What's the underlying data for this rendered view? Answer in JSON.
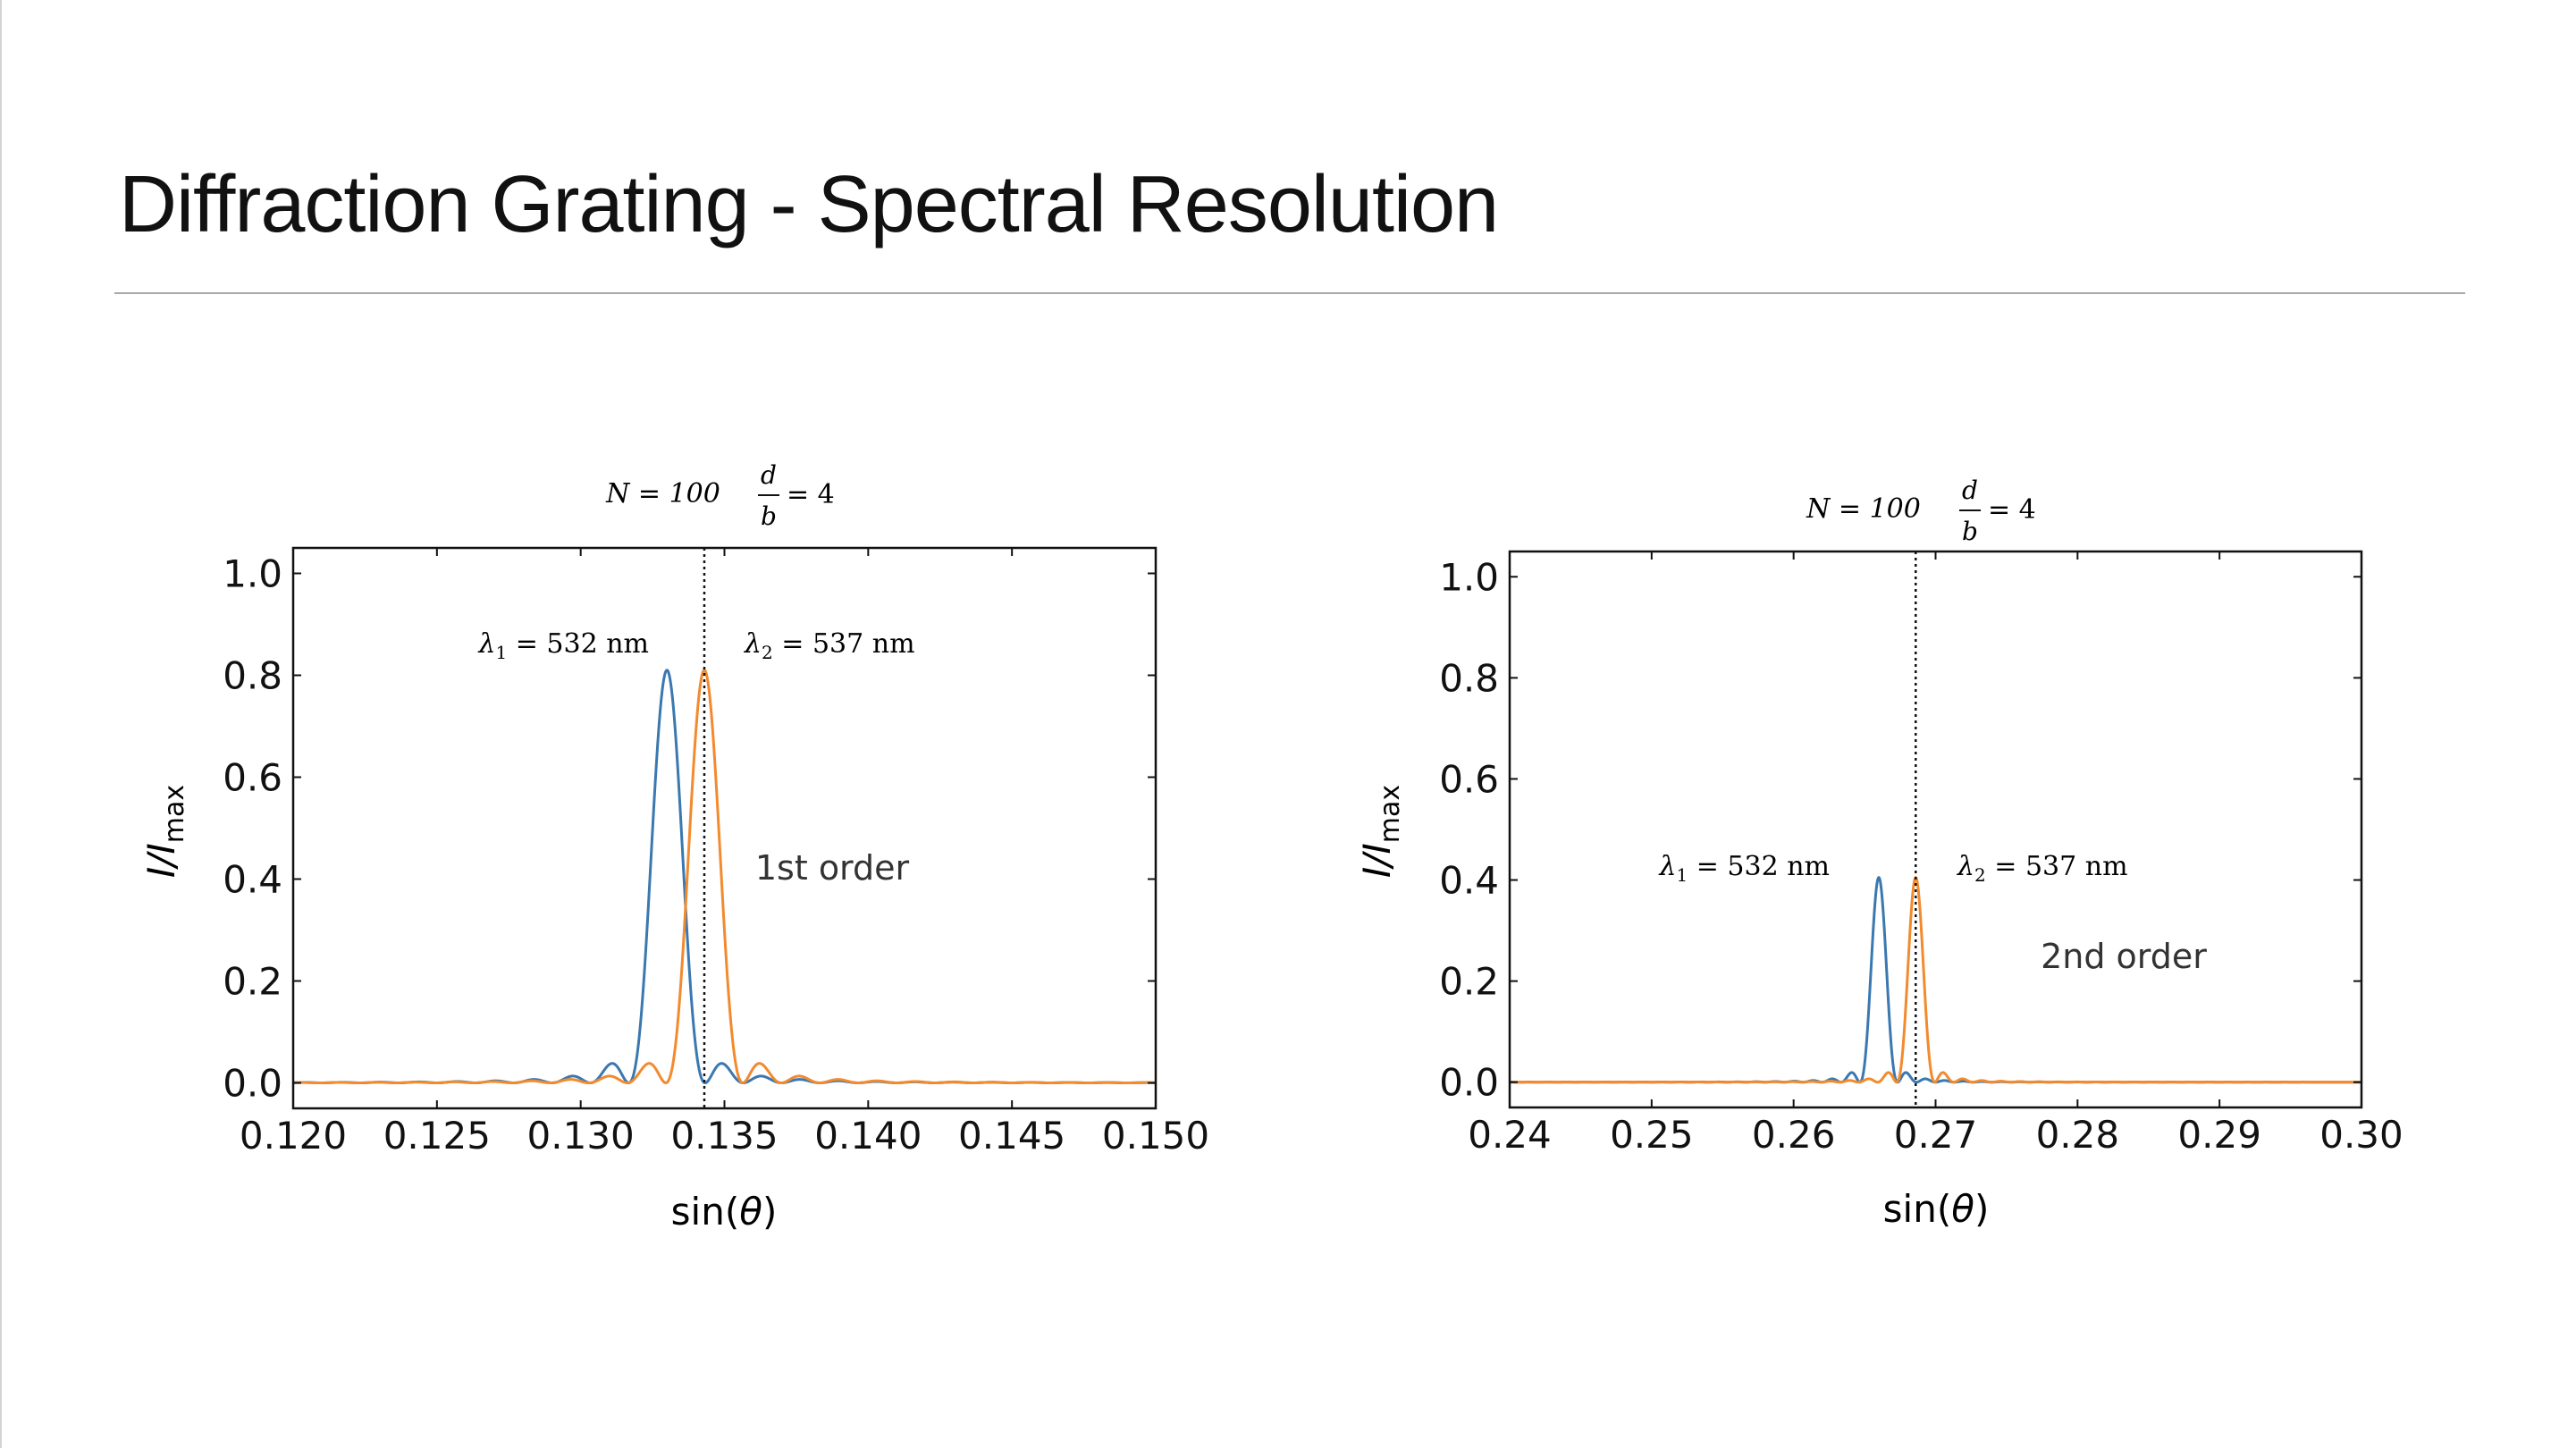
{
  "slide": {
    "title": "Diffraction Grating - Spectral Resolution"
  },
  "colors": {
    "lambda1": "#3a78b0",
    "lambda2": "#f28a2e",
    "axis": "#111111"
  },
  "chart_data": [
    {
      "type": "line",
      "header": {
        "n_text": "N = 100",
        "ratio_num": "d",
        "ratio_den": "b",
        "ratio_val": "= 4"
      },
      "xlabel": "sin(θ)",
      "ylabel": "I/I",
      "ylabel_sub": "max",
      "xlim": [
        0.12,
        0.15
      ],
      "ylim": [
        -0.05,
        1.05
      ],
      "xticks": [
        "0.120",
        "0.125",
        "0.130",
        "0.135",
        "0.140",
        "0.145",
        "0.150"
      ],
      "xtick_values": [
        0.12,
        0.125,
        0.13,
        0.135,
        0.14,
        0.145,
        0.15
      ],
      "yticks": [
        "0.0",
        "0.2",
        "0.4",
        "0.6",
        "0.8",
        "1.0"
      ],
      "ytick_values": [
        0,
        0.2,
        0.4,
        0.6,
        0.8,
        1.0
      ],
      "order_label": "1st order",
      "grid": false,
      "series": [
        {
          "name": "λ1 = 532 nm",
          "sym": "λ",
          "sub": "1",
          "rest": " = 532 nm",
          "color": "#3a78b0",
          "peak_x": 0.133,
          "peak_y": 0.81,
          "null_dx": 0.00133
        },
        {
          "name": "λ2 = 537 nm",
          "sym": "λ",
          "sub": "2",
          "rest": " = 537 nm",
          "color": "#f28a2e",
          "peak_x": 0.1343,
          "peak_y": 0.81,
          "null_dx": 0.00134
        }
      ],
      "vline_x": 0.1343
    },
    {
      "type": "line",
      "header": {
        "n_text": "N = 100",
        "ratio_num": "d",
        "ratio_den": "b",
        "ratio_val": "= 4"
      },
      "xlabel": "sin(θ)",
      "ylabel": "I/I",
      "ylabel_sub": "max",
      "xlim": [
        0.24,
        0.3
      ],
      "ylim": [
        -0.05,
        1.05
      ],
      "xticks": [
        "0.24",
        "0.25",
        "0.26",
        "0.27",
        "0.28",
        "0.29",
        "0.30"
      ],
      "xtick_values": [
        0.24,
        0.25,
        0.26,
        0.27,
        0.28,
        0.29,
        0.3
      ],
      "yticks": [
        "0.0",
        "0.2",
        "0.4",
        "0.6",
        "0.8",
        "1.0"
      ],
      "ytick_values": [
        0,
        0.2,
        0.4,
        0.6,
        0.8,
        1.0
      ],
      "order_label": "2nd order",
      "grid": false,
      "series": [
        {
          "name": "λ1 = 532 nm",
          "sym": "λ",
          "sub": "1",
          "rest": " = 532 nm",
          "color": "#3a78b0",
          "peak_x": 0.266,
          "peak_y": 0.405,
          "null_dx": 0.00133
        },
        {
          "name": "λ2 = 537 nm",
          "sym": "λ",
          "sub": "2",
          "rest": " = 537 nm",
          "color": "#f28a2e",
          "peak_x": 0.2686,
          "peak_y": 0.405,
          "null_dx": 0.00134
        }
      ],
      "vline_x": 0.2686
    }
  ]
}
